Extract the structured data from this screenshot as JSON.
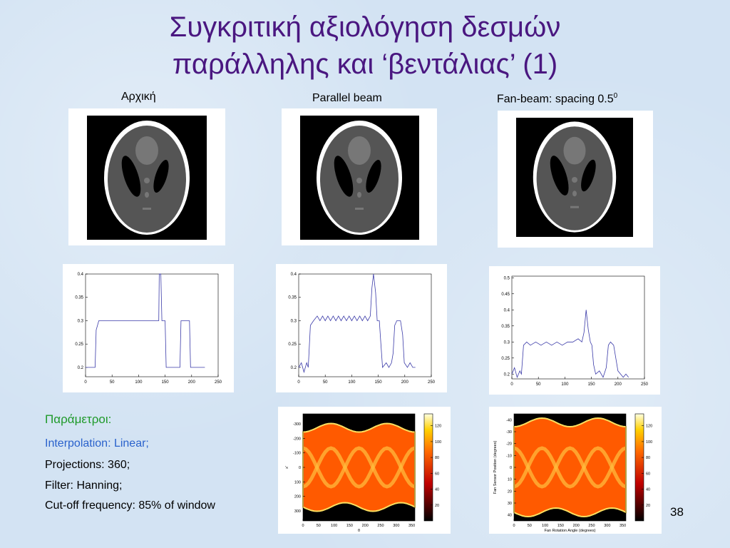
{
  "title": [
    "Συγκριτική αξιολόγηση δεσμών",
    "παράλληλης και ‘βεντάλιας’  (1)"
  ],
  "columns": [
    {
      "text": "Αρχική"
    },
    {
      "text": "Parallel beam"
    },
    {
      "text": "Fan-beam: spacing 0.5",
      "sup": "0"
    }
  ],
  "profiles": [
    {
      "xlim": [
        0,
        250
      ],
      "ylim": [
        0.18,
        0.4
      ],
      "xticks": [
        0,
        50,
        100,
        150,
        200,
        250
      ],
      "yticks": [
        0.2,
        0.25,
        0.3,
        0.35,
        0.4
      ],
      "x": [
        0,
        18,
        20,
        25,
        138,
        139,
        142,
        144,
        150,
        152,
        178,
        180,
        196,
        198,
        225
      ],
      "y": [
        0.2,
        0.2,
        0.28,
        0.3,
        0.3,
        0.4,
        0.4,
        0.3,
        0.3,
        0.2,
        0.2,
        0.3,
        0.3,
        0.2,
        0.2
      ]
    },
    {
      "xlim": [
        0,
        250
      ],
      "ylim": [
        0.18,
        0.4
      ],
      "xticks": [
        0,
        50,
        100,
        150,
        200,
        250
      ],
      "yticks": [
        0.2,
        0.25,
        0.3,
        0.35,
        0.4
      ],
      "x": [
        0,
        5,
        10,
        15,
        18,
        22,
        28,
        35,
        40,
        45,
        50,
        55,
        60,
        65,
        70,
        75,
        80,
        85,
        90,
        95,
        100,
        105,
        110,
        115,
        120,
        125,
        130,
        135,
        138,
        141,
        145,
        148,
        152,
        155,
        158,
        165,
        170,
        175,
        178,
        181,
        185,
        192,
        196,
        199,
        205,
        210,
        215,
        220
      ],
      "y": [
        0.2,
        0.21,
        0.19,
        0.21,
        0.2,
        0.29,
        0.3,
        0.31,
        0.3,
        0.31,
        0.3,
        0.31,
        0.3,
        0.31,
        0.3,
        0.31,
        0.3,
        0.31,
        0.3,
        0.31,
        0.3,
        0.31,
        0.3,
        0.31,
        0.3,
        0.31,
        0.3,
        0.31,
        0.37,
        0.4,
        0.36,
        0.3,
        0.3,
        0.25,
        0.2,
        0.21,
        0.2,
        0.21,
        0.23,
        0.29,
        0.3,
        0.3,
        0.27,
        0.21,
        0.2,
        0.21,
        0.2,
        0.2
      ]
    },
    {
      "xlim": [
        0,
        250
      ],
      "ylim": [
        0.185,
        0.505
      ],
      "xticks": [
        0,
        50,
        100,
        150,
        200,
        250
      ],
      "yticks": [
        0.2,
        0.25,
        0.3,
        0.35,
        0.4,
        0.45,
        0.5
      ],
      "x": [
        0,
        5,
        10,
        15,
        18,
        22,
        28,
        35,
        45,
        55,
        65,
        75,
        85,
        95,
        105,
        115,
        125,
        132,
        136,
        140,
        144,
        148,
        151,
        154,
        158,
        165,
        172,
        178,
        182,
        186,
        192,
        196,
        200,
        205,
        210,
        215,
        220
      ],
      "y": [
        0.2,
        0.22,
        0.19,
        0.21,
        0.2,
        0.29,
        0.3,
        0.29,
        0.3,
        0.29,
        0.3,
        0.29,
        0.3,
        0.29,
        0.3,
        0.3,
        0.31,
        0.3,
        0.33,
        0.4,
        0.34,
        0.3,
        0.29,
        0.23,
        0.2,
        0.21,
        0.19,
        0.22,
        0.29,
        0.3,
        0.29,
        0.25,
        0.21,
        0.2,
        0.19,
        0.2,
        0.19
      ]
    }
  ],
  "sinograms": [
    {
      "xlim": [
        0,
        360
      ],
      "ylim": [
        -370,
        370
      ],
      "xticks": [
        0,
        50,
        100,
        150,
        200,
        250,
        300,
        350
      ],
      "yticks": [
        -300,
        -200,
        -100,
        0,
        100,
        200,
        300
      ],
      "xlabel": "θ",
      "ylabel": "x'",
      "clim": [
        0,
        135
      ],
      "cticks": [
        20,
        40,
        60,
        80,
        100,
        120
      ]
    },
    {
      "xlim": [
        0,
        360
      ],
      "ylim": [
        -45,
        45
      ],
      "xticks": [
        0,
        50,
        100,
        150,
        200,
        250,
        300,
        350
      ],
      "yticks": [
        -40,
        -30,
        -20,
        -10,
        0,
        10,
        20,
        30,
        40
      ],
      "xlabel": "Fan Rotation Angle (degrees)",
      "ylabel": "Fan Sensor Position (degrees)",
      "clim": [
        0,
        135
      ],
      "cticks": [
        20,
        40,
        60,
        80,
        100,
        120
      ]
    }
  ],
  "parameters": {
    "heading": "Παράμετροι:",
    "interpolation": "Interpolation: Linear;",
    "lines": [
      "Projections: 360;",
      "Filter: Hanning;",
      "Cut-off frequency: 85% of window"
    ]
  },
  "page_number": "38"
}
